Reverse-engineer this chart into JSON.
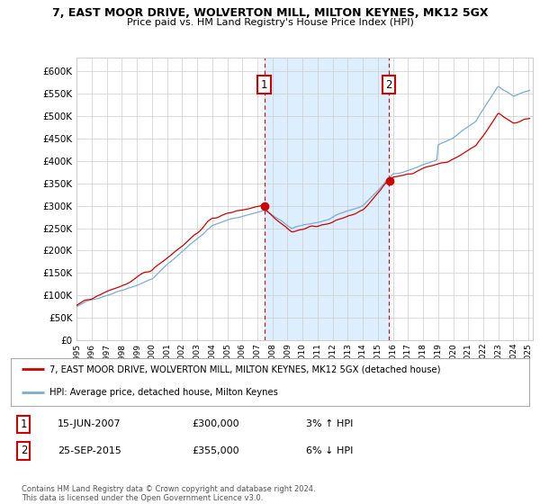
{
  "title": "7, EAST MOOR DRIVE, WOLVERTON MILL, MILTON KEYNES, MK12 5GX",
  "subtitle": "Price paid vs. HM Land Registry's House Price Index (HPI)",
  "legend_line1": "7, EAST MOOR DRIVE, WOLVERTON MILL, MILTON KEYNES, MK12 5GX (detached house)",
  "legend_line2": "HPI: Average price, detached house, Milton Keynes",
  "annotation1_date": "15-JUN-2007",
  "annotation1_price": "£300,000",
  "annotation1_hpi": "3% ↑ HPI",
  "annotation1_year": 2007.46,
  "annotation1_value": 300000,
  "annotation2_date": "25-SEP-2015",
  "annotation2_price": "£355,000",
  "annotation2_hpi": "6% ↓ HPI",
  "annotation2_year": 2015.73,
  "annotation2_value": 355000,
  "footer": "Contains HM Land Registry data © Crown copyright and database right 2024.\nThis data is licensed under the Open Government Licence v3.0.",
  "ylim": [
    0,
    630000
  ],
  "yticks": [
    0,
    50000,
    100000,
    150000,
    200000,
    250000,
    300000,
    350000,
    400000,
    450000,
    500000,
    550000,
    600000
  ],
  "red_color": "#cc0000",
  "blue_color": "#7aadcf",
  "shaded_color": "#ddeeff"
}
